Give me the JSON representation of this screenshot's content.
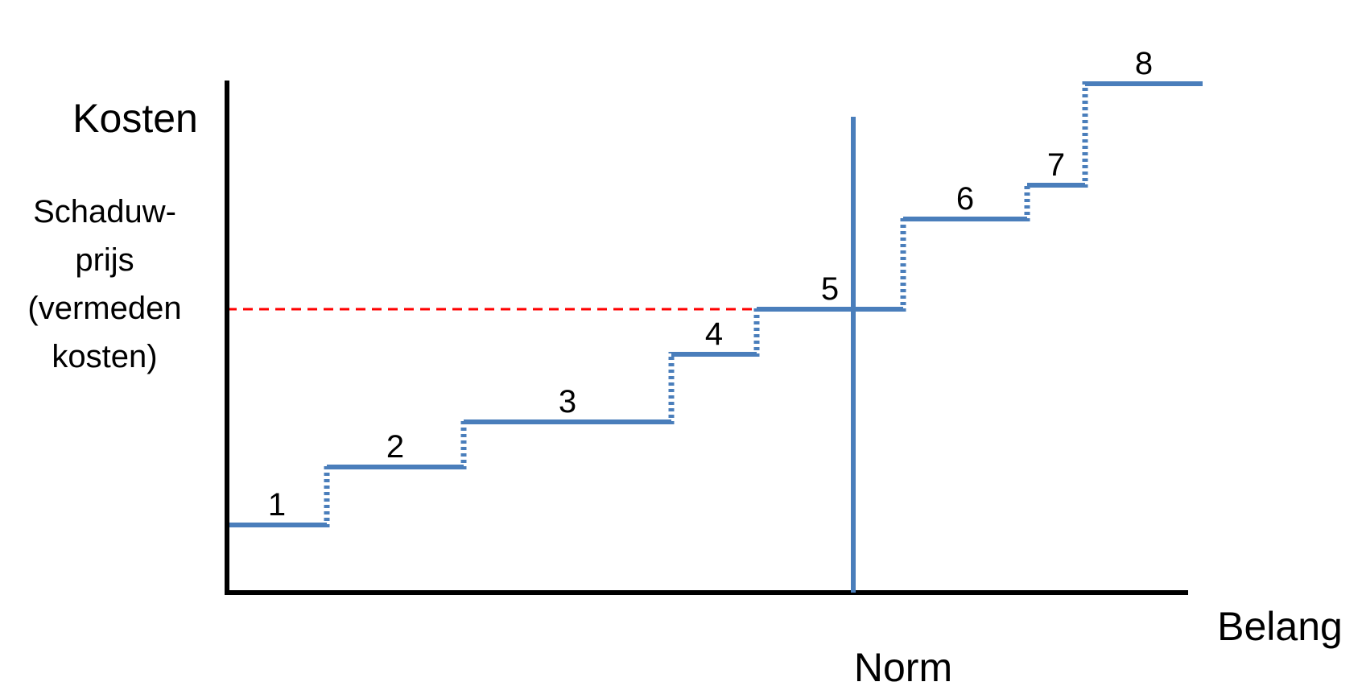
{
  "labels": {
    "y_axis": "Kosten",
    "shadow_price_lines": [
      "Schaduw-",
      "prijs",
      "(vermeden",
      "kosten)"
    ],
    "x_axis": "Belang",
    "norm": "Norm"
  },
  "chart_data": {
    "type": "step",
    "steps": [
      {
        "label": "1",
        "x_start": 0,
        "x_end": 124,
        "cost": 84
      },
      {
        "label": "2",
        "x_start": 124,
        "x_end": 294,
        "cost": 156
      },
      {
        "label": "3",
        "x_start": 294,
        "x_end": 552,
        "cost": 212
      },
      {
        "label": "4",
        "x_start": 552,
        "x_end": 658,
        "cost": 296
      },
      {
        "label": "5",
        "x_start": 658,
        "x_end": 840,
        "cost": 352
      },
      {
        "label": "6",
        "x_start": 840,
        "x_end": 994,
        "cost": 464
      },
      {
        "label": "7",
        "x_start": 994,
        "x_end": 1066,
        "cost": 506
      },
      {
        "label": "8",
        "x_start": 1066,
        "x_end": 1212,
        "cost": 632
      }
    ],
    "norm_x": 778,
    "shadow_price": 352,
    "ylim": [
      0,
      635
    ],
    "xlim": [
      0,
      1212
    ]
  },
  "colors": {
    "steps": "#4A7EBB",
    "shadow_price_line": "#FF0000",
    "axes": "#000000",
    "text": "#000000"
  }
}
